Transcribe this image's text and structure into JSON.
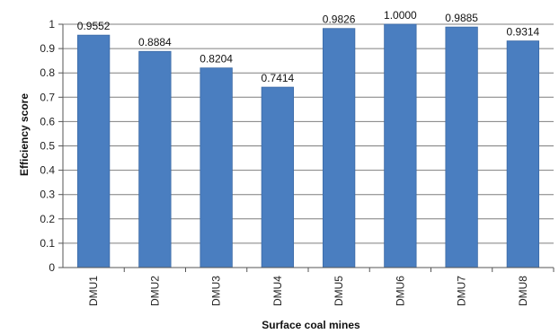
{
  "chart_data": {
    "type": "bar",
    "title": "",
    "xlabel": "Surface coal mines",
    "ylabel": "Efficiency score",
    "categories": [
      "DMU1",
      "DMU2",
      "DMU3",
      "DMU4",
      "DMU5",
      "DMU6",
      "DMU7",
      "DMU8"
    ],
    "values": [
      0.9552,
      0.8884,
      0.8204,
      0.7414,
      0.9826,
      1.0,
      0.9885,
      0.9314
    ],
    "value_labels": [
      "0.9552",
      "0.8884",
      "0.8204",
      "0.7414",
      "0.9826",
      "1.0000",
      "0.9885",
      "0.9314"
    ],
    "ylim": [
      0,
      1
    ],
    "yticks": [
      0,
      0.1,
      0.2,
      0.3,
      0.4,
      0.5,
      0.6,
      0.7,
      0.8,
      0.9,
      1
    ],
    "ytick_labels": [
      "0",
      "0.1",
      "0.2",
      "0.3",
      "0.4",
      "0.5",
      "0.6",
      "0.7",
      "0.8",
      "0.9",
      "1"
    ],
    "grid": true,
    "legend": "none",
    "colors": {
      "bar": "#4a7ec0",
      "bar_edge": "#3b6aa6",
      "grid": "#7f7f7f",
      "axis": "#555555"
    }
  }
}
